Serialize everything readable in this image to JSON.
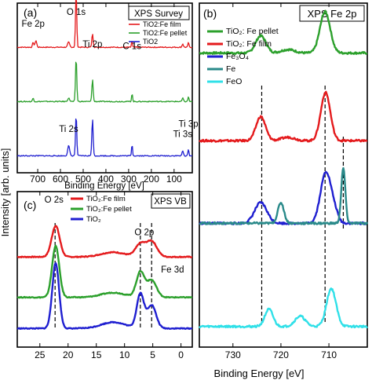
{
  "figure": {
    "y_axis_label": "Intensity [arb. units]",
    "x_axis_label_shared": "Binding Energy [eV]"
  },
  "chart_data": [
    {
      "panel": "a",
      "panel_label": "(a)",
      "title": "XPS Survey",
      "type": "line",
      "xlabel": "Binding Energy [eV]",
      "xlim": [
        790,
        20
      ],
      "x_ticks": [
        "700",
        "600",
        "500",
        "400",
        "300",
        "200",
        "100"
      ],
      "x_tick_values": [
        700,
        600,
        500,
        400,
        300,
        200,
        100
      ],
      "legend_position": "top-right",
      "annotations": [
        {
          "text": "Fe 2p",
          "x": 720,
          "offset": 0.86
        },
        {
          "text": "O 1s",
          "x": 531,
          "offset": 0.93
        },
        {
          "text": "Ti 2p",
          "x": 459,
          "offset": 0.74
        },
        {
          "text": "C 1s",
          "x": 285,
          "offset": 0.73
        },
        {
          "text": "Ti 2s",
          "x": 564,
          "offset": 0.24
        },
        {
          "text": "Ti 3p",
          "x": 37,
          "offset": 0.27
        },
        {
          "text": "Ti 3s",
          "x": 62,
          "offset": 0.21
        }
      ],
      "series": [
        {
          "name": "TiO2:Fe film",
          "color": "#e41a1c",
          "offset": 0.74,
          "peaks": [
            [
              720,
              0.03,
              4
            ],
            [
              708,
              0.04,
              5
            ],
            [
              564,
              0.03,
              6
            ],
            [
              531,
              0.32,
              4
            ],
            [
              459,
              0.08,
              4
            ],
            [
              285,
              0.04,
              3
            ],
            [
              62,
              0.02,
              4
            ],
            [
              37,
              0.03,
              3
            ]
          ]
        },
        {
          "name": "TiO2:Fe pellet",
          "color": "#2ca02c",
          "offset": 0.42,
          "peaks": [
            [
              720,
              0.02,
              4
            ],
            [
              564,
              0.02,
              6
            ],
            [
              531,
              0.26,
              4
            ],
            [
              459,
              0.13,
              4
            ],
            [
              285,
              0.05,
              3
            ],
            [
              62,
              0.02,
              4
            ],
            [
              37,
              0.03,
              3
            ]
          ]
        },
        {
          "name": "TiO2",
          "color": "#1f1fd0",
          "offset": 0.1,
          "peaks": [
            [
              564,
              0.06,
              6
            ],
            [
              531,
              0.24,
              4
            ],
            [
              459,
              0.22,
              4
            ],
            [
              285,
              0.07,
              3
            ],
            [
              62,
              0.03,
              4
            ],
            [
              37,
              0.04,
              3
            ]
          ]
        }
      ]
    },
    {
      "panel": "b",
      "panel_label": "(b)",
      "title": "XPS Fe 2p",
      "type": "line",
      "xlabel": "Binding Energy [eV]",
      "xlim": [
        737,
        702
      ],
      "x_ticks": [
        "730",
        "720",
        "710"
      ],
      "x_tick_values": [
        730,
        720,
        710
      ],
      "legend_position": "top-left",
      "reference_lines": [
        724,
        710.8,
        707
      ],
      "series": [
        {
          "name": "TiO₂: Fe pellet",
          "color": "#2ca02c",
          "offset": 0.855,
          "peaks": [
            [
              724.2,
              0.05,
              1.5
            ],
            [
              710.8,
              0.12,
              1.5
            ],
            [
              718.5,
              0.01,
              2
            ]
          ]
        },
        {
          "name": "TiO₂: Fe film",
          "color": "#e41a1c",
          "offset": 0.6,
          "peaks": [
            [
              724.2,
              0.07,
              1.4
            ],
            [
              710.7,
              0.14,
              1.4
            ],
            [
              718.5,
              0.01,
              2
            ]
          ]
        },
        {
          "name": "Fe₃O₄",
          "color": "#1f1fd0",
          "offset": 0.36,
          "peaks": [
            [
              724.2,
              0.06,
              1.8
            ],
            [
              710.6,
              0.15,
              1.6
            ],
            [
              708.7,
              0.02,
              1.0
            ]
          ]
        },
        {
          "name": "Fe",
          "color": "#2a8a8a",
          "offset": 0.36,
          "peaks": [
            [
              720,
              0.06,
              0.9
            ],
            [
              707,
              0.16,
              0.6
            ]
          ]
        },
        {
          "name": "FeO",
          "color": "#30e0e8",
          "offset": 0.06,
          "peaks": [
            [
              722.5,
              0.05,
              1.2
            ],
            [
              716,
              0.03,
              1.5
            ],
            [
              709.5,
              0.11,
              1.4
            ]
          ]
        }
      ]
    },
    {
      "panel": "c",
      "panel_label": "(c)",
      "title": "XPS VB",
      "type": "line",
      "xlabel": "Binding Energy [eV]",
      "xlim": [
        29,
        -2
      ],
      "x_ticks": [
        "25",
        "20",
        "15",
        "10",
        "5",
        "0"
      ],
      "x_tick_values": [
        25,
        20,
        15,
        10,
        5,
        0
      ],
      "legend_position": "top-center",
      "annotations": [
        {
          "text": "O 2s",
          "x": 22.5,
          "offset": 0.93
        },
        {
          "text": "O 2p",
          "x": 6.5,
          "offset": 0.72
        },
        {
          "text": "Fe 3d",
          "x": 1.5,
          "offset": 0.48
        }
      ],
      "reference_lines": [
        22.3,
        7.2,
        5.2
      ],
      "series": [
        {
          "name": "TiO₂:Fe film",
          "color": "#e41a1c",
          "offset": 0.58,
          "peaks": [
            [
              22.2,
              0.2,
              1.0
            ],
            [
              7.2,
              0.08,
              1.2
            ],
            [
              5.2,
              0.1,
              1.3
            ],
            [
              12,
              0.03,
              3
            ]
          ]
        },
        {
          "name": "TiO₂:Fe pellet",
          "color": "#2ca02c",
          "offset": 0.32,
          "peaks": [
            [
              22.2,
              0.33,
              0.9
            ],
            [
              7.2,
              0.16,
              1.0
            ],
            [
              5.2,
              0.11,
              1.2
            ],
            [
              12,
              0.03,
              3
            ]
          ]
        },
        {
          "name": "TiO₂",
          "color": "#1f1fd0",
          "offset": 0.12,
          "peaks": [
            [
              22.2,
              0.42,
              0.85
            ],
            [
              7.2,
              0.22,
              0.9
            ],
            [
              5.2,
              0.15,
              1.1
            ],
            [
              12,
              0.04,
              3
            ]
          ]
        }
      ]
    }
  ]
}
